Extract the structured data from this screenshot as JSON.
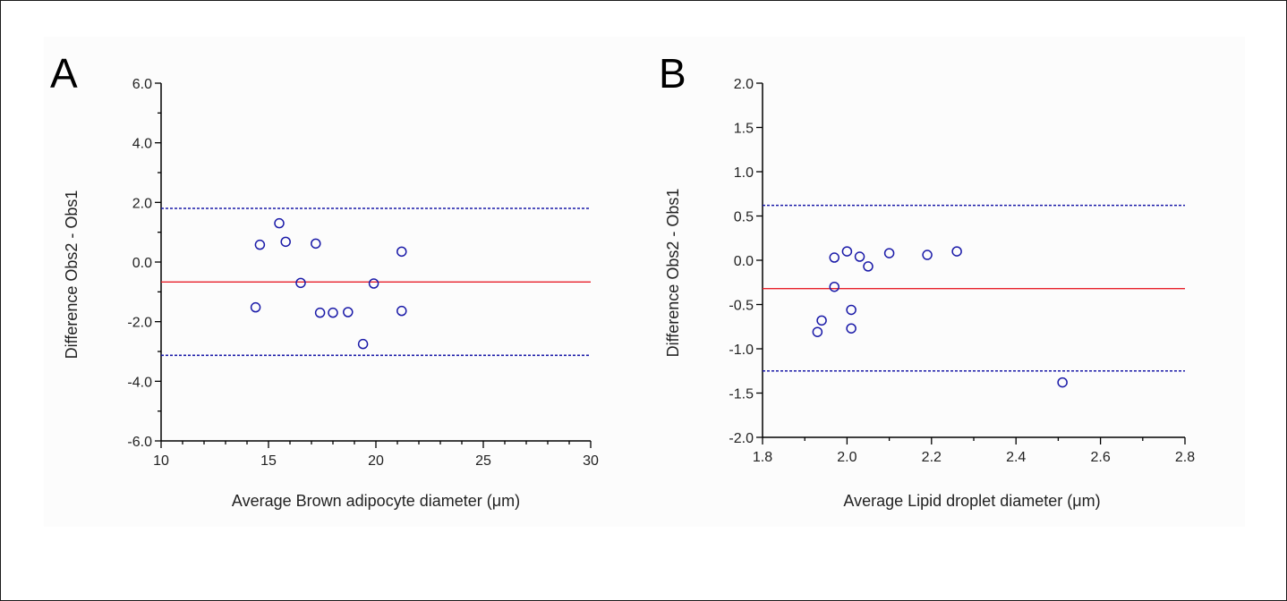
{
  "chart_data": [
    {
      "type": "scatter",
      "panel_label": "A",
      "xlabel": "Average Brown adipocyte diameter (μm)",
      "ylabel": "Difference Obs2 - Obs1",
      "xlim": [
        10,
        30
      ],
      "ylim": [
        -6,
        6
      ],
      "x_major_ticks": [
        10,
        15,
        20,
        25,
        30
      ],
      "x_tick_labels": [
        "10",
        "15",
        "20",
        "25",
        "30"
      ],
      "y_major_ticks": [
        -6,
        -4,
        -2,
        0,
        2,
        4,
        6
      ],
      "y_tick_labels": [
        "-6.0",
        "-4.0",
        "-2.0",
        "0.0",
        "2.0",
        "4.0",
        "6.0"
      ],
      "points": [
        {
          "x": 14.4,
          "y": -1.52
        },
        {
          "x": 14.6,
          "y": 0.58
        },
        {
          "x": 15.5,
          "y": 1.3
        },
        {
          "x": 15.8,
          "y": 0.68
        },
        {
          "x": 16.5,
          "y": -0.7
        },
        {
          "x": 17.2,
          "y": 0.62
        },
        {
          "x": 17.4,
          "y": -1.7
        },
        {
          "x": 18.0,
          "y": -1.7
        },
        {
          "x": 18.7,
          "y": -1.68
        },
        {
          "x": 19.4,
          "y": -2.75
        },
        {
          "x": 19.9,
          "y": -0.72
        },
        {
          "x": 21.2,
          "y": 0.35
        },
        {
          "x": 21.2,
          "y": -1.64
        }
      ],
      "mean_line": -0.67,
      "limits_of_agreement": [
        1.8,
        -3.13
      ],
      "colors": {
        "points": "#1a1aa8",
        "mean": "#e8202a",
        "limits": "#1a1aa8"
      }
    },
    {
      "type": "scatter",
      "panel_label": "B",
      "xlabel": "Average Lipid droplet diameter (μm)",
      "ylabel": "Difference Obs2 - Obs1",
      "xlim": [
        1.8,
        2.8
      ],
      "ylim": [
        -2.0,
        2.0
      ],
      "x_major_ticks": [
        1.8,
        2.0,
        2.2,
        2.4,
        2.6,
        2.8
      ],
      "x_tick_labels": [
        "1.8",
        "2.0",
        "2.2",
        "2.4",
        "2.6",
        "2.8"
      ],
      "y_major_ticks": [
        -2.0,
        -1.5,
        -1.0,
        -0.5,
        0.0,
        0.5,
        1.0,
        1.5,
        2.0
      ],
      "y_tick_labels": [
        "-2.0",
        "-1.5",
        "-1.0",
        "-0.5",
        "0.0",
        "0.5",
        "1.0",
        "1.5",
        "2.0"
      ],
      "points": [
        {
          "x": 1.93,
          "y": -0.81
        },
        {
          "x": 1.94,
          "y": -0.68
        },
        {
          "x": 1.97,
          "y": 0.03
        },
        {
          "x": 1.97,
          "y": -0.3
        },
        {
          "x": 2.0,
          "y": 0.1
        },
        {
          "x": 2.01,
          "y": -0.56
        },
        {
          "x": 2.01,
          "y": -0.77
        },
        {
          "x": 2.03,
          "y": 0.04
        },
        {
          "x": 2.05,
          "y": -0.07
        },
        {
          "x": 2.1,
          "y": 0.08
        },
        {
          "x": 2.19,
          "y": 0.06
        },
        {
          "x": 2.26,
          "y": 0.1
        },
        {
          "x": 2.51,
          "y": -1.38
        }
      ],
      "mean_line": -0.32,
      "limits_of_agreement": [
        0.62,
        -1.25
      ],
      "colors": {
        "points": "#1a1aa8",
        "mean": "#e8202a",
        "limits": "#1a1aa8"
      }
    }
  ]
}
